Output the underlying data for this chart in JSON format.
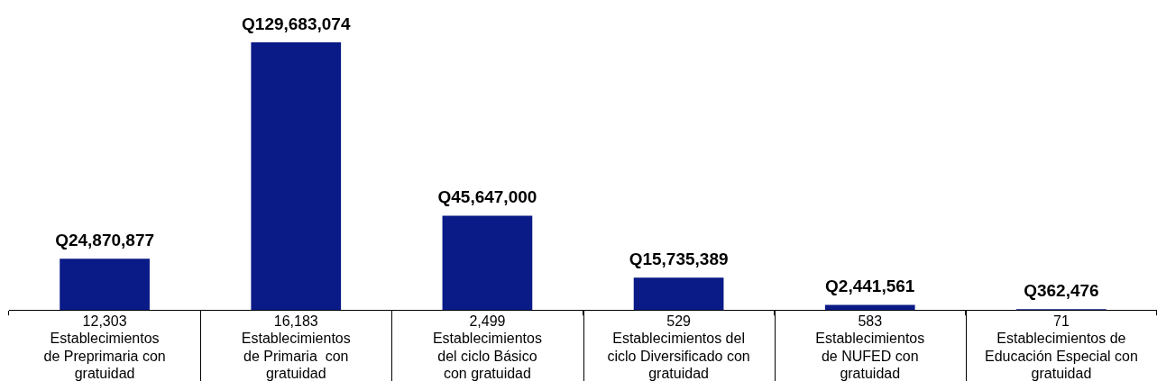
{
  "chart_data": {
    "type": "bar",
    "categories": [
      "12,303\nEstablecimientos\nde Preprimaria con\ngratuidad",
      "16,183\nEstablecimientos\nde Primaria  con\ngratuidad",
      "2,499\nEstablecimientos\ndel ciclo Básico\ncon gratuidad",
      "529\nEstablecimientos del\nciclo Diversificado con\ngratuidad",
      "583\nEstablecimientos\nde NUFED con\ngratuidad",
      "71\nEstablecimientos de\nEducación Especial con\ngratuidad"
    ],
    "values": [
      24870877,
      129683074,
      45647000,
      15735389,
      2441561,
      362476
    ],
    "value_labels": [
      "Q24,870,877",
      "Q129,683,074",
      "Q45,647,000",
      "Q15,735,389",
      "Q2,441,561",
      "Q362,476"
    ],
    "color": "#0a1a86",
    "grid": false,
    "legend": false
  }
}
